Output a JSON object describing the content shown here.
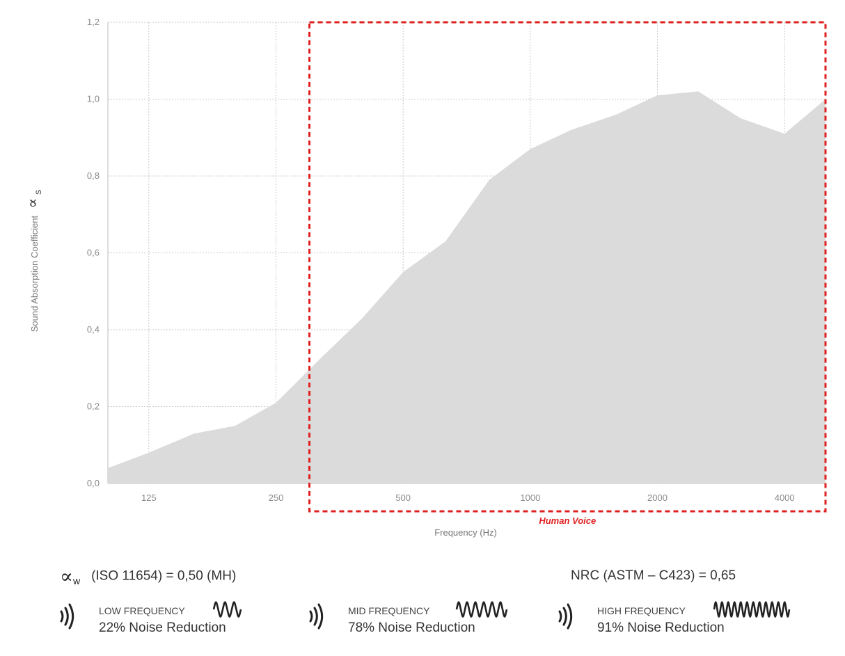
{
  "chart_data": {
    "type": "area",
    "ylabel": "Sound Absorption Coefficient",
    "ylabel_symbol": "∝",
    "ylabel_subscript": "S",
    "xlabel": "Frequency (Hz)",
    "x_scale": "log",
    "xlim": [
      100,
      5000
    ],
    "ylim": [
      0,
      1.2
    ],
    "x_ticks": [
      125,
      250,
      500,
      1000,
      2000,
      4000
    ],
    "x_tick_labels": [
      "125",
      "250",
      "500",
      "1000",
      "2000",
      "4000"
    ],
    "y_ticks": [
      0,
      0.2,
      0.4,
      0.6,
      0.8,
      1.0,
      1.2
    ],
    "y_tick_labels": [
      "0,0",
      "0,2",
      "0,4",
      "0,6",
      "0,8",
      "1,0",
      "1,2"
    ],
    "grid": true,
    "fill_color": "#d9d9d9",
    "series": [
      {
        "x": [
          100,
          125,
          160,
          200,
          250,
          315,
          400,
          500,
          630,
          800,
          1000,
          1250,
          1600,
          2000,
          2500,
          3150,
          4000,
          5000
        ],
        "values": [
          0.04,
          0.08,
          0.13,
          0.15,
          0.21,
          0.32,
          0.43,
          0.55,
          0.63,
          0.79,
          0.87,
          0.92,
          0.96,
          1.01,
          1.02,
          0.95,
          0.91,
          1.0
        ]
      }
    ],
    "highlight_region": {
      "label": "Human Voice",
      "x_range": [
        300,
        5000
      ],
      "color": "#e02020"
    }
  },
  "stats": {
    "alpha_w_symbol": "∝",
    "alpha_w_subscript": "w",
    "iso_text": "(ISO 11654) = 0,50 (MH)",
    "nrc_text": "NRC (ASTM – C423) = 0,65"
  },
  "frequency_bands": [
    {
      "band": "LOW FREQUENCY",
      "reduction": "22% Noise Reduction",
      "wave": "low-wave-icon",
      "cycles": 3
    },
    {
      "band": "MID FREQUENCY",
      "reduction": "78% Noise Reduction",
      "wave": "mid-wave-icon",
      "cycles": 6
    },
    {
      "band": "HIGH FREQUENCY",
      "reduction": "91% Noise Reduction",
      "wave": "high-wave-icon",
      "cycles": 12
    }
  ]
}
